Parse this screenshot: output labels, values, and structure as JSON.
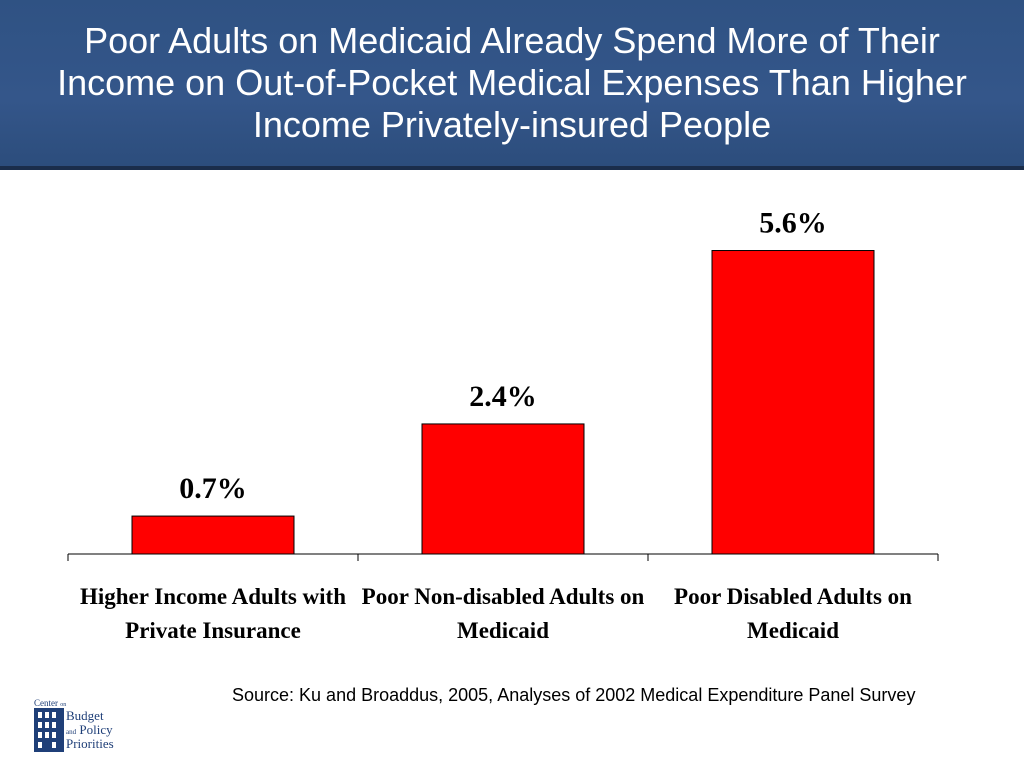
{
  "slide": {
    "title": "Poor Adults on Medicaid Already Spend More of Their Income on Out-of-Pocket Medical Expenses Than Higher Income Privately-insured People",
    "source": "Source: Ku and Broaddus, 2005, Analyses of 2002 Medical Expenditure Panel Survey"
  },
  "logo": {
    "line1": "Center",
    "line1b": "on",
    "line2": "Budget",
    "line3a": "and",
    "line3b": "Policy",
    "line4": "Priorities"
  },
  "chart_data": {
    "type": "bar",
    "categories": [
      "Higher Income Adults with Private Insurance",
      "Poor Non-disabled Adults on Medicaid",
      "Poor Disabled Adults on Medicaid"
    ],
    "values": [
      0.7,
      2.4,
      5.6
    ],
    "data_labels": [
      "0.7%",
      "2.4%",
      "5.6%"
    ],
    "ylim": [
      0,
      6.2
    ],
    "grid": false,
    "legend": false,
    "bar_color": "#ff0000"
  }
}
